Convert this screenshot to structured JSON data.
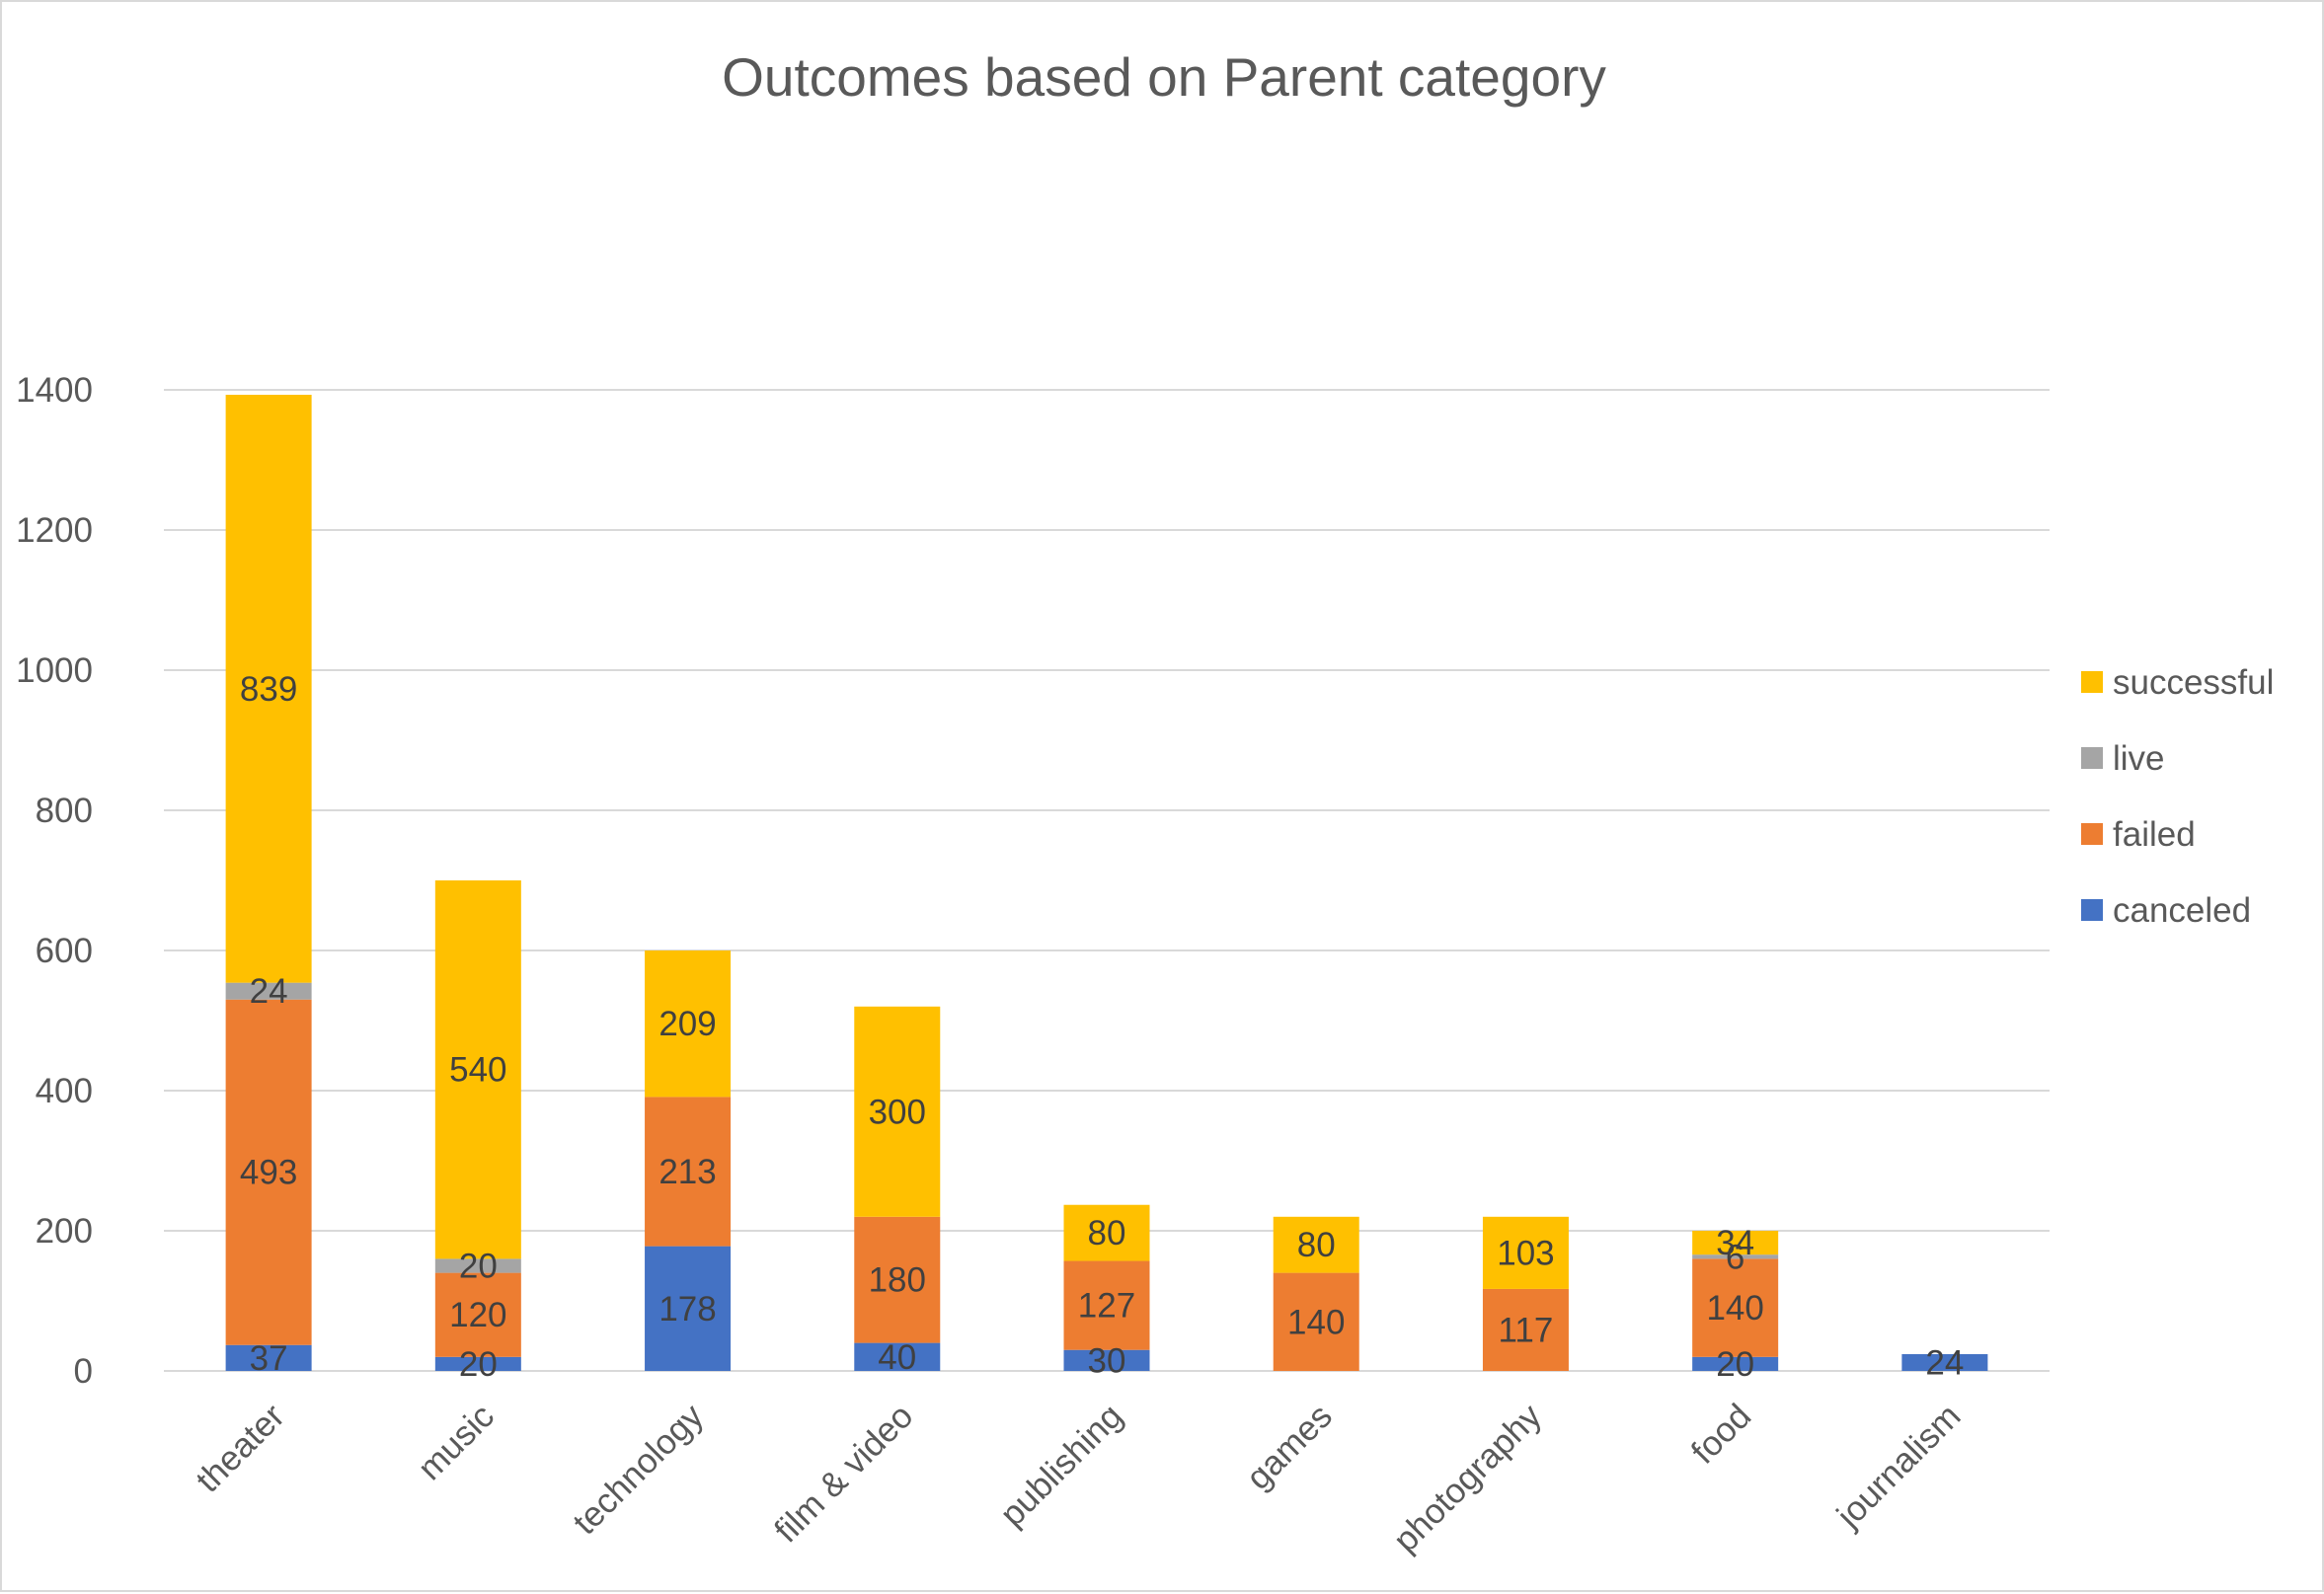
{
  "chart_data": {
    "type": "bar",
    "stacked": true,
    "title": "Outcomes based on Parent  category",
    "xlabel": "",
    "ylabel": "",
    "ylim": [
      0,
      1400
    ],
    "yticks": [
      0,
      200,
      400,
      600,
      800,
      1000,
      1200,
      1400
    ],
    "grid": true,
    "legend_position": "right",
    "categories": [
      "theater",
      "music",
      "technology",
      "film & video",
      "publishing",
      "games",
      "photography",
      "food",
      "journalism"
    ],
    "series": [
      {
        "name": "canceled",
        "color": "#4472C4",
        "values": [
          37,
          20,
          178,
          40,
          30,
          0,
          0,
          20,
          24
        ]
      },
      {
        "name": "failed",
        "color": "#ED7D31",
        "values": [
          493,
          120,
          213,
          180,
          127,
          140,
          117,
          140,
          0
        ]
      },
      {
        "name": "live",
        "color": "#A5A5A5",
        "values": [
          24,
          20,
          0,
          0,
          0,
          0,
          0,
          6,
          0
        ]
      },
      {
        "name": "successful",
        "color": "#FFC000",
        "values": [
          839,
          540,
          209,
          300,
          80,
          80,
          103,
          34,
          0
        ]
      }
    ],
    "legend_order": [
      "successful",
      "live",
      "failed",
      "canceled"
    ]
  }
}
